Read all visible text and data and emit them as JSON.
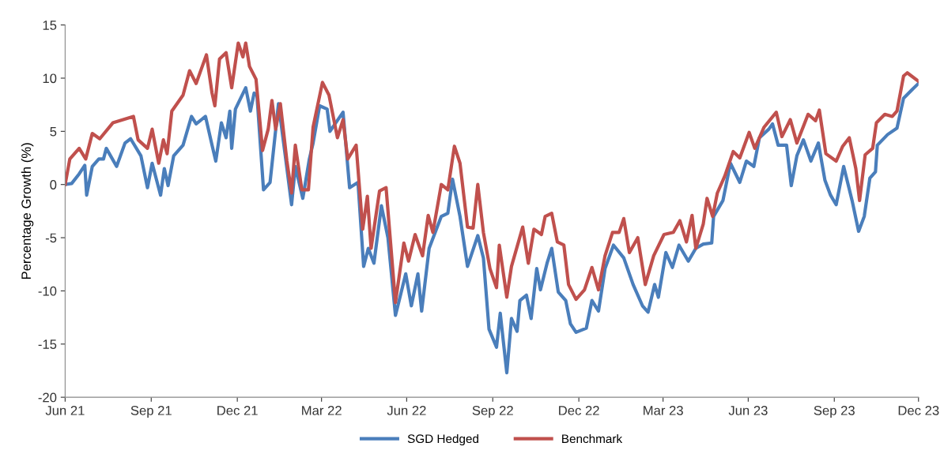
{
  "chart_data": {
    "type": "line",
    "ylabel": "Percentage Growth (%)",
    "ylim": [
      -20,
      15
    ],
    "yticks": [
      -20,
      -15,
      -10,
      -5,
      0,
      5,
      10,
      15
    ],
    "xlim": [
      "2021-06-30",
      "2023-12-29"
    ],
    "xticks": [
      {
        "value": "2021-06-30",
        "label": "Jun 21"
      },
      {
        "value": "2021-09-30",
        "label": "Sep 21"
      },
      {
        "value": "2021-12-31",
        "label": "Dec 21"
      },
      {
        "value": "2022-03-31",
        "label": "Mar 22"
      },
      {
        "value": "2022-06-30",
        "label": "Jun 22"
      },
      {
        "value": "2022-09-30",
        "label": "Sep 22"
      },
      {
        "value": "2022-12-31",
        "label": "Dec 22"
      },
      {
        "value": "2023-03-31",
        "label": "Mar 23"
      },
      {
        "value": "2023-06-30",
        "label": "Jun 23"
      },
      {
        "value": "2023-09-30",
        "label": "Sep 23"
      },
      {
        "value": "2023-12-29",
        "label": "Dec 23"
      }
    ],
    "grid": false,
    "legend": "bottom",
    "marker": "none",
    "line_style": "solid",
    "series": [
      {
        "name": "SGD Hedged",
        "color": "#4a7ebb",
        "x": [
          "2021-06-30",
          "2021-07-07",
          "2021-07-15",
          "2021-07-21",
          "2021-07-23",
          "2021-07-29",
          "2021-08-05",
          "2021-08-10",
          "2021-08-13",
          "2021-08-24",
          "2021-09-02",
          "2021-09-08",
          "2021-09-19",
          "2021-09-26",
          "2021-10-01",
          "2021-10-10",
          "2021-10-14",
          "2021-10-18",
          "2021-10-24",
          "2021-11-03",
          "2021-11-12",
          "2021-11-17",
          "2021-11-27",
          "2021-12-04",
          "2021-12-08",
          "2021-12-14",
          "2021-12-19",
          "2021-12-23",
          "2021-12-25",
          "2021-12-29",
          "2022-01-09",
          "2022-01-14",
          "2022-01-18",
          "2022-01-21",
          "2022-01-28",
          "2022-02-04",
          "2022-02-13",
          "2022-02-20",
          "2022-02-27",
          "2022-03-03",
          "2022-03-11",
          "2022-03-18",
          "2022-03-22",
          "2022-03-29",
          "2022-04-06",
          "2022-04-09",
          "2022-04-23",
          "2022-04-30",
          "2022-05-09",
          "2022-05-15",
          "2022-05-20",
          "2022-05-26",
          "2022-06-03",
          "2022-06-10",
          "2022-06-18",
          "2022-06-29",
          "2022-07-05",
          "2022-07-12",
          "2022-07-16",
          "2022-07-24",
          "2022-08-06",
          "2022-08-13",
          "2022-08-18",
          "2022-08-26",
          "2022-09-03",
          "2022-09-14",
          "2022-09-20",
          "2022-09-26",
          "2022-10-04",
          "2022-10-08",
          "2022-10-15",
          "2022-10-20",
          "2022-10-26",
          "2022-10-29",
          "2022-11-05",
          "2022-11-10",
          "2022-11-16",
          "2022-11-20",
          "2022-11-27",
          "2022-12-02",
          "2022-12-09",
          "2022-12-17",
          "2022-12-22",
          "2022-12-28",
          "2023-01-08",
          "2023-01-14",
          "2023-01-21",
          "2023-01-28",
          "2023-02-06",
          "2023-02-17",
          "2023-02-27",
          "2023-03-09",
          "2023-03-15",
          "2023-03-22",
          "2023-03-26",
          "2023-04-03",
          "2023-04-10",
          "2023-04-17",
          "2023-04-27",
          "2023-05-05",
          "2023-05-13",
          "2023-05-22",
          "2023-05-24",
          "2023-06-03",
          "2023-06-11",
          "2023-06-21",
          "2023-06-28",
          "2023-07-06",
          "2023-07-12",
          "2023-07-22",
          "2023-07-26",
          "2023-08-01",
          "2023-08-10",
          "2023-08-15",
          "2023-08-21",
          "2023-08-28",
          "2023-09-05",
          "2023-09-13",
          "2023-09-20",
          "2023-09-26",
          "2023-10-02",
          "2023-10-10",
          "2023-10-19",
          "2023-10-26",
          "2023-11-01",
          "2023-11-07",
          "2023-11-13",
          "2023-11-15",
          "2023-11-26",
          "2023-12-06",
          "2023-12-13",
          "2023-12-23",
          "2023-12-29"
        ],
        "values": [
          0,
          0.1,
          1.0,
          1.8,
          -1.0,
          1.7,
          2.4,
          2.4,
          3.4,
          1.7,
          3.9,
          4.3,
          2.7,
          -0.3,
          2.0,
          -1.0,
          1.5,
          -0.1,
          2.7,
          3.7,
          6.4,
          5.7,
          6.4,
          3.7,
          2.2,
          5.8,
          4.4,
          6.9,
          3.4,
          7.1,
          9.1,
          6.9,
          8.6,
          8.4,
          -0.5,
          0.2,
          7.6,
          2.9,
          -1.9,
          1.7,
          -1.3,
          2.4,
          3.9,
          7.4,
          7.1,
          5.0,
          6.8,
          -0.3,
          0.2,
          -7.7,
          -6.0,
          -7.4,
          -2.0,
          -5.0,
          -12.3,
          -8.4,
          -11.4,
          -8.4,
          -11.9,
          -6.0,
          -3.0,
          -2.7,
          0.5,
          -3.0,
          -7.7,
          -4.8,
          -6.9,
          -13.6,
          -15.3,
          -12.1,
          -17.7,
          -12.6,
          -13.8,
          -10.9,
          -10.4,
          -12.6,
          -7.9,
          -9.9,
          -7.4,
          -6.0,
          -10.1,
          -10.9,
          -13.1,
          -13.9,
          -13.5,
          -10.9,
          -11.9,
          -7.9,
          -5.7,
          -6.9,
          -9.4,
          -11.4,
          -12.0,
          -9.4,
          -10.6,
          -6.4,
          -7.8,
          -5.7,
          -7.2,
          -6.0,
          -5.6,
          -5.5,
          -3.0,
          -1.5,
          2.0,
          0.2,
          2.2,
          1.7,
          4.4,
          5.2,
          5.7,
          3.7,
          3.7,
          -0.1,
          2.7,
          4.2,
          2.2,
          3.9,
          0.4,
          -1.0,
          -1.9,
          1.7,
          -1.5,
          -4.4,
          -3.0,
          0.6,
          1.2,
          3.7,
          4.7,
          5.3,
          8.1,
          9.0,
          9.5
        ]
      },
      {
        "name": "Benchmark",
        "color": "#c0504d",
        "x": [
          "2021-06-30",
          "2021-07-05",
          "2021-07-15",
          "2021-07-22",
          "2021-07-29",
          "2021-08-06",
          "2021-08-20",
          "2021-09-11",
          "2021-09-16",
          "2021-09-26",
          "2021-10-01",
          "2021-10-08",
          "2021-10-13",
          "2021-10-17",
          "2021-10-22",
          "2021-11-03",
          "2021-11-10",
          "2021-11-17",
          "2021-11-28",
          "2021-12-04",
          "2021-12-07",
          "2021-12-12",
          "2021-12-19",
          "2021-12-25",
          "2022-01-01",
          "2022-01-06",
          "2022-01-09",
          "2022-01-13",
          "2022-01-20",
          "2022-01-27",
          "2022-02-02",
          "2022-02-06",
          "2022-02-10",
          "2022-02-15",
          "2022-02-22",
          "2022-02-27",
          "2022-03-03",
          "2022-03-10",
          "2022-03-17",
          "2022-03-22",
          "2022-04-01",
          "2022-04-08",
          "2022-04-17",
          "2022-04-23",
          "2022-04-28",
          "2022-05-07",
          "2022-05-14",
          "2022-05-19",
          "2022-05-23",
          "2022-06-01",
          "2022-06-08",
          "2022-06-18",
          "2022-06-27",
          "2022-07-02",
          "2022-07-09",
          "2022-07-17",
          "2022-07-23",
          "2022-07-28",
          "2022-08-06",
          "2022-08-13",
          "2022-08-20",
          "2022-08-26",
          "2022-09-03",
          "2022-09-09",
          "2022-09-14",
          "2022-09-20",
          "2022-09-27",
          "2022-10-04",
          "2022-10-07",
          "2022-10-15",
          "2022-10-20",
          "2022-11-01",
          "2022-11-07",
          "2022-11-13",
          "2022-11-21",
          "2022-11-25",
          "2022-12-02",
          "2022-12-08",
          "2022-12-15",
          "2022-12-20",
          "2022-12-28",
          "2023-01-06",
          "2023-01-14",
          "2023-01-21",
          "2023-01-28",
          "2023-02-05",
          "2023-02-12",
          "2023-02-17",
          "2023-02-23",
          "2023-03-04",
          "2023-03-12",
          "2023-03-21",
          "2023-04-01",
          "2023-04-11",
          "2023-04-18",
          "2023-04-25",
          "2023-05-01",
          "2023-05-05",
          "2023-05-13",
          "2023-05-17",
          "2023-05-23",
          "2023-05-28",
          "2023-06-05",
          "2023-06-14",
          "2023-06-21",
          "2023-07-01",
          "2023-07-07",
          "2023-07-17",
          "2023-07-30",
          "2023-08-05",
          "2023-08-14",
          "2023-08-21",
          "2023-09-02",
          "2023-09-10",
          "2023-09-14",
          "2023-09-21",
          "2023-10-02",
          "2023-10-09",
          "2023-10-16",
          "2023-10-23",
          "2023-10-27",
          "2023-11-02",
          "2023-11-10",
          "2023-11-14",
          "2023-11-23",
          "2023-12-01",
          "2023-12-06",
          "2023-12-13",
          "2023-12-17",
          "2023-12-29"
        ],
        "values": [
          0,
          2.4,
          3.4,
          2.4,
          4.8,
          4.3,
          5.8,
          6.4,
          4.2,
          3.4,
          5.2,
          2.0,
          4.2,
          2.9,
          6.9,
          8.4,
          10.7,
          9.5,
          12.2,
          8.6,
          7.4,
          11.8,
          12.4,
          9.1,
          13.3,
          12.0,
          13.3,
          11.1,
          9.9,
          3.2,
          5.2,
          7.9,
          5.2,
          7.6,
          2.2,
          -0.8,
          3.7,
          -0.5,
          -0.5,
          5.4,
          9.6,
          8.4,
          4.4,
          6.1,
          2.4,
          3.7,
          -4.2,
          -1.1,
          -6.0,
          -0.6,
          -0.3,
          -11.1,
          -5.5,
          -7.2,
          -4.7,
          -6.7,
          -2.9,
          -4.5,
          0,
          -0.5,
          3.6,
          2.0,
          -4.0,
          -4.1,
          0,
          -4.5,
          -7.9,
          -9.7,
          -5.7,
          -10.6,
          -7.7,
          -4.0,
          -7.4,
          -4.2,
          -4.7,
          -3.0,
          -2.7,
          -5.4,
          -5.7,
          -9.4,
          -10.8,
          -9.9,
          -7.8,
          -9.9,
          -6.7,
          -4.5,
          -4.5,
          -3.2,
          -6.4,
          -5.0,
          -9.4,
          -6.7,
          -4.7,
          -4.5,
          -3.4,
          -5.4,
          -2.9,
          -6.0,
          -3.7,
          -1.3,
          -3.0,
          -0.8,
          0.8,
          3.1,
          2.5,
          4.9,
          3.4,
          5.4,
          6.8,
          4.5,
          6.1,
          3.9,
          6.6,
          6.0,
          7.0,
          2.9,
          2.2,
          3.6,
          4.4,
          1.5,
          -1.5,
          2.8,
          3.4,
          5.8,
          6.6,
          6.4,
          6.9,
          10.2,
          10.5,
          9.7
        ]
      }
    ]
  }
}
